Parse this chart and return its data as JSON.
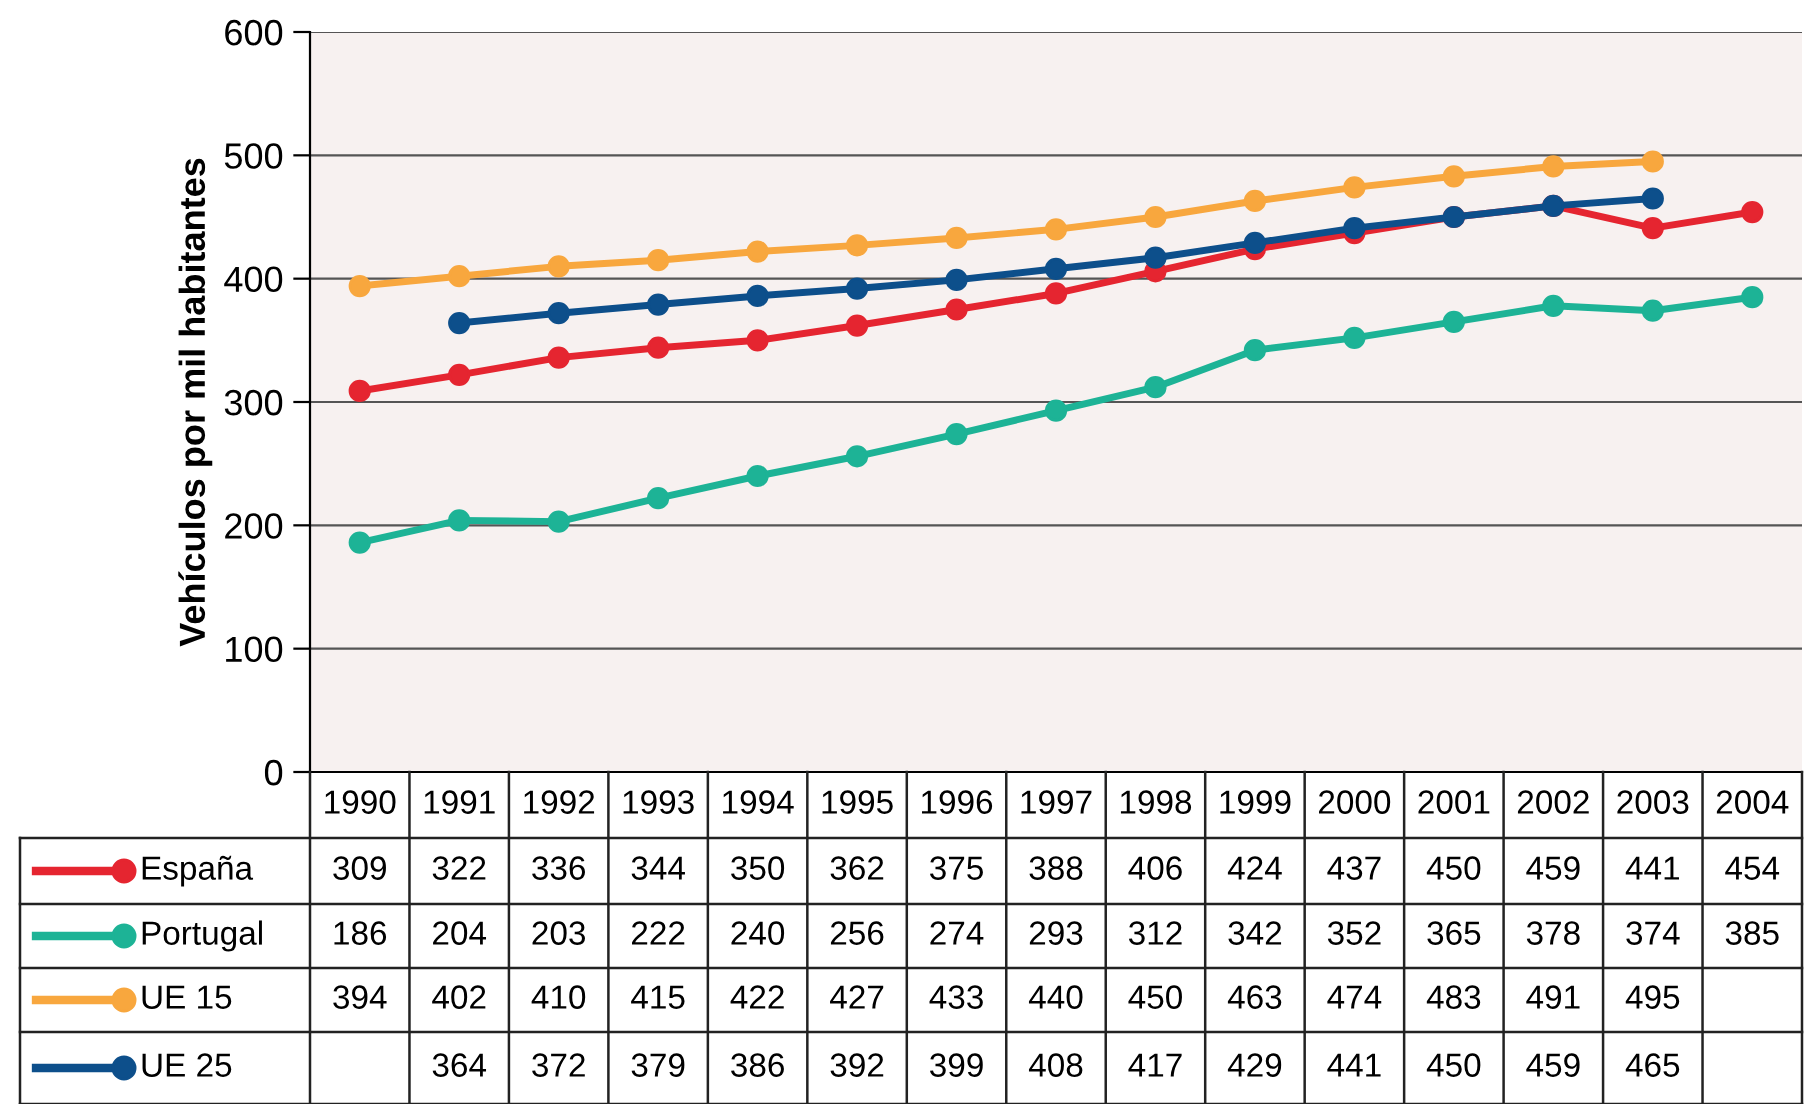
{
  "chart_data": {
    "type": "line",
    "ylabel": "Vehículos por mil habitantes",
    "categories": [
      "1990",
      "1991",
      "1992",
      "1993",
      "1994",
      "1995",
      "1996",
      "1997",
      "1998",
      "1999",
      "2000",
      "2001",
      "2002",
      "2003",
      "2004"
    ],
    "series": [
      {
        "name": "España",
        "color": "#e52530",
        "values": [
          309,
          322,
          336,
          344,
          350,
          362,
          375,
          388,
          406,
          424,
          437,
          450,
          459,
          441,
          454
        ]
      },
      {
        "name": "Portugal",
        "color": "#1db396",
        "values": [
          186,
          204,
          203,
          222,
          240,
          256,
          274,
          293,
          312,
          342,
          352,
          365,
          378,
          374,
          385
        ]
      },
      {
        "name": "UE 15",
        "color": "#f8a73e",
        "values": [
          394,
          402,
          410,
          415,
          422,
          427,
          433,
          440,
          450,
          463,
          474,
          483,
          491,
          495,
          null
        ]
      },
      {
        "name": "UE 25",
        "color": "#0d4f8b",
        "values": [
          null,
          364,
          372,
          379,
          386,
          392,
          399,
          408,
          417,
          429,
          441,
          450,
          459,
          465,
          null
        ]
      }
    ],
    "ylim": [
      0,
      600
    ],
    "yticks": [
      0,
      100,
      200,
      300,
      400,
      500,
      600
    ],
    "grid": "y",
    "legend": "bottom left",
    "marker": "circle",
    "line_style": "solid",
    "data_labels": true
  }
}
